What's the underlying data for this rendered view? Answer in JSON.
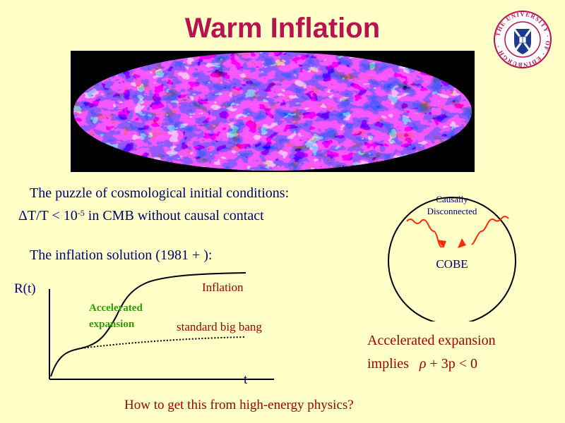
{
  "title": "Warm Inflation",
  "logo": {
    "ring_text": "THE UNIVERSITY OF EDINBURGH",
    "ring_color": "#b8124f",
    "shield_color": "#1e3a8c"
  },
  "puzzle": {
    "line1": "The puzzle of cosmological initial conditions:",
    "line2_prefix": "ΔT/T < 10",
    "line2_exponent": "-5",
    "line2_suffix": " in CMB without causal contact"
  },
  "inflation_solution": "The inflation solution (1981 + ):",
  "graph": {
    "y_label": "R(t)",
    "x_label": "t",
    "inflation_label": "Inflation",
    "accelerated_label_line1": "Accelerated",
    "accelerated_label_line2": "expansion",
    "bigbang_label": "standard big bang",
    "inflation_color": "#a30000",
    "accelerated_color": "#2aa000"
  },
  "circle": {
    "label_line1": "Causally",
    "label_line2": "Disconnected",
    "cobe_label": "COBE",
    "arrow_color": "#ff2a00"
  },
  "acceleration": {
    "line1": "Accelerated expansion",
    "line2_prefix": "implies",
    "rho": "ρ",
    "line2_suffix": " + 3p < 0"
  },
  "question": "How to get this from high-energy physics?"
}
